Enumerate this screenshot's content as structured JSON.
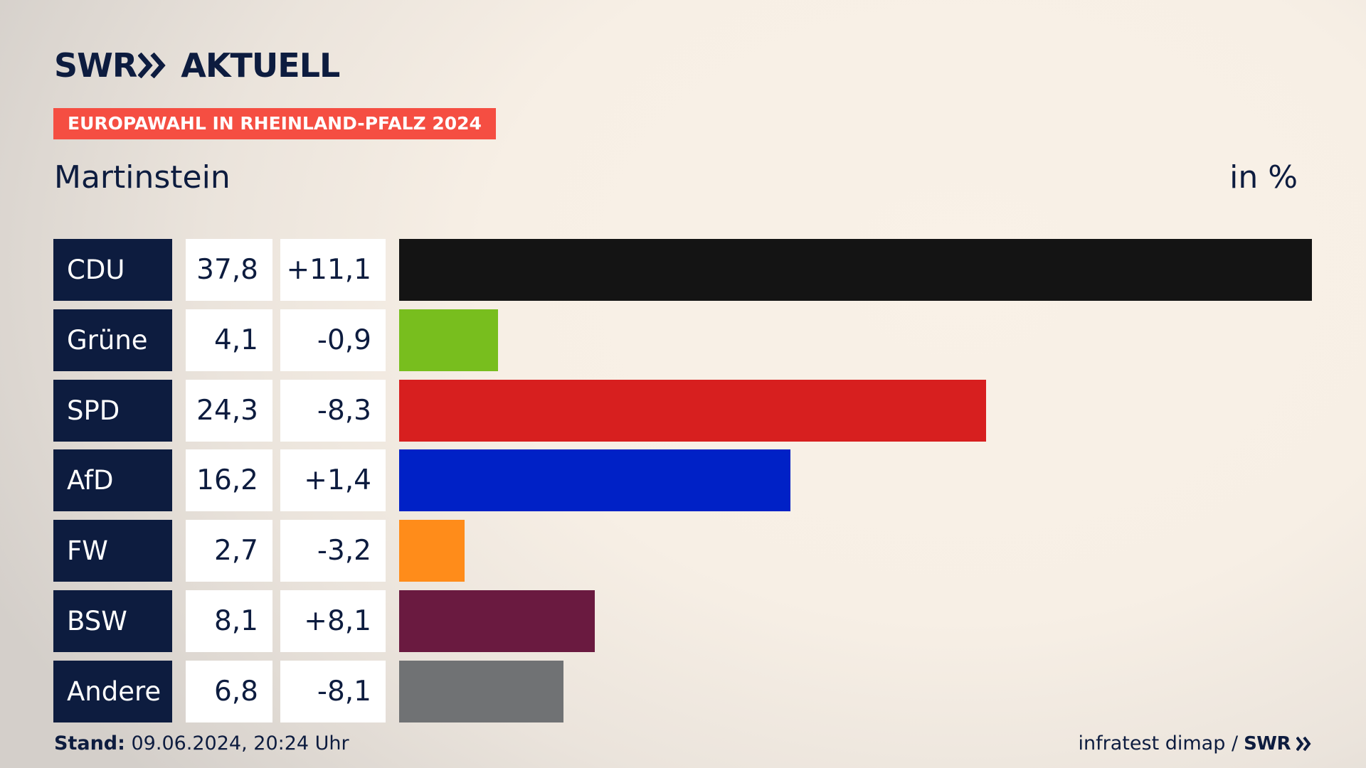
{
  "header": {
    "brand_swr": "SWR",
    "brand_aktuell": "AKTUELL",
    "badge": "EUROPAWAHL IN RHEINLAND-PFALZ 2024",
    "place": "Martinstein",
    "unit": "in %"
  },
  "colors": {
    "navy": "#0d1c3f",
    "badge": "#f54e42"
  },
  "chart_data": {
    "type": "bar",
    "orientation": "horizontal",
    "categories": [
      "CDU",
      "Grüne",
      "SPD",
      "AfD",
      "FW",
      "BSW",
      "Andere"
    ],
    "values": [
      37.8,
      4.1,
      24.3,
      16.2,
      2.7,
      8.1,
      6.8
    ],
    "value_labels": [
      "37,8",
      "4,1",
      "24,3",
      "16,2",
      "2,7",
      "8,1",
      "6,8"
    ],
    "diff_labels": [
      "+11,1",
      "-0,9",
      "-8,3",
      "+1,4",
      "-3,2",
      "+8,1",
      "-8,1"
    ],
    "colors": [
      "#141414",
      "#78be1e",
      "#d71f1f",
      "#0021c6",
      "#ff8c1a",
      "#6a1a40",
      "#707274"
    ],
    "xlim": [
      0,
      37.8
    ]
  },
  "footer": {
    "stand_label": "Stand:",
    "stand_value": " 09.06.2024, 20:24 Uhr",
    "source": "infratest dimap /",
    "source_brand": "SWR"
  }
}
